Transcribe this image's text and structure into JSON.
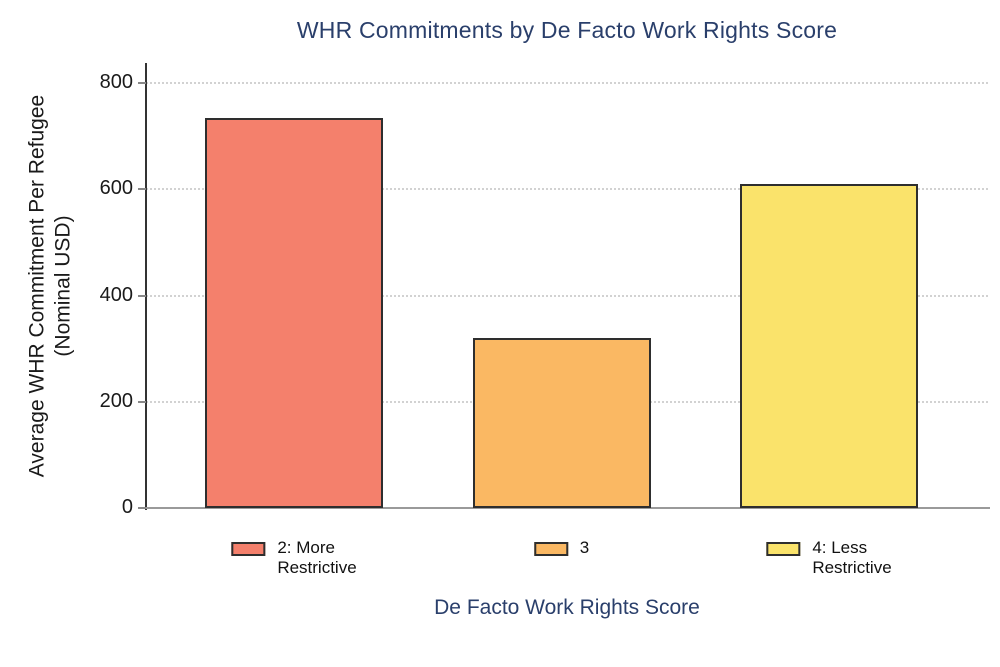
{
  "chart_data": {
    "type": "bar",
    "title": "WHR Commitments by De Facto Work Rights Score",
    "xlabel": "De Facto Work Rights Score",
    "ylabel": "Average WHR Commitment Per Refugee\n(Nominal USD)",
    "categories": [
      "2: More Restrictive",
      "3",
      "4: Less Restrictive"
    ],
    "values": [
      735,
      320,
      610
    ],
    "ylim": [
      0,
      800
    ],
    "yticks": [
      0,
      200,
      400,
      600,
      800
    ],
    "grid": "horizontal-dotted",
    "legend_position": "bottom",
    "legend": [
      {
        "label": "2: More\nRestrictive",
        "color": "#f4806c"
      },
      {
        "label": "3",
        "color": "#fab863"
      },
      {
        "label": "4: Less\nRestrictive",
        "color": "#fae36b"
      }
    ],
    "colors": {
      "bar_fills": [
        "#f4806c",
        "#fab863",
        "#fae36b"
      ],
      "bar_border": "#2e2e2e",
      "title_text": "#2a3f6b",
      "xlabel_text": "#2a3f6b",
      "ylabel_text": "#1a1a1a",
      "tick_text": "#1a1a1a",
      "y_axis_line": "#333333",
      "x_axis_line": "#9a9a9a",
      "gridline": "#d2d2d2"
    }
  }
}
